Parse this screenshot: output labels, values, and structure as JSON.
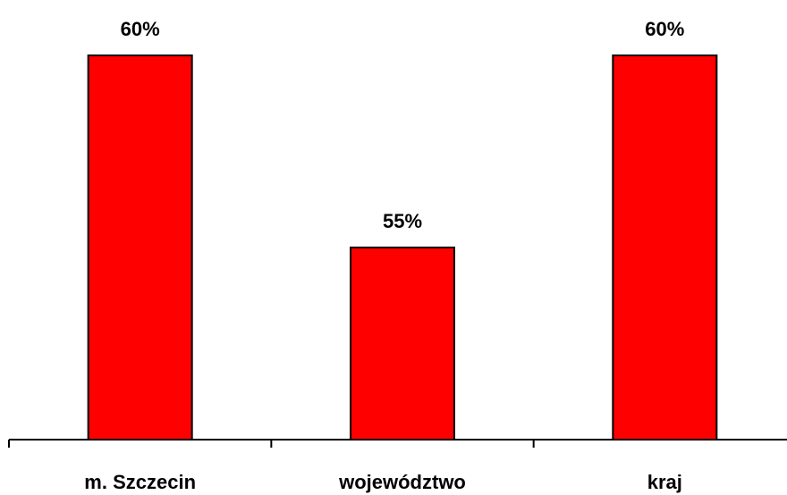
{
  "chart_data": {
    "type": "bar",
    "categories": [
      "m. Szczecin",
      "województwo",
      "kraj"
    ],
    "values": [
      60,
      55,
      60
    ],
    "value_labels": [
      "60%",
      "55%",
      "60%"
    ],
    "title": "",
    "xlabel": "",
    "ylabel": "",
    "ylim": [
      50,
      60
    ],
    "grid": false,
    "legend": "none",
    "bar_color": "#ff0000",
    "bar_edge_color": "#000000"
  }
}
